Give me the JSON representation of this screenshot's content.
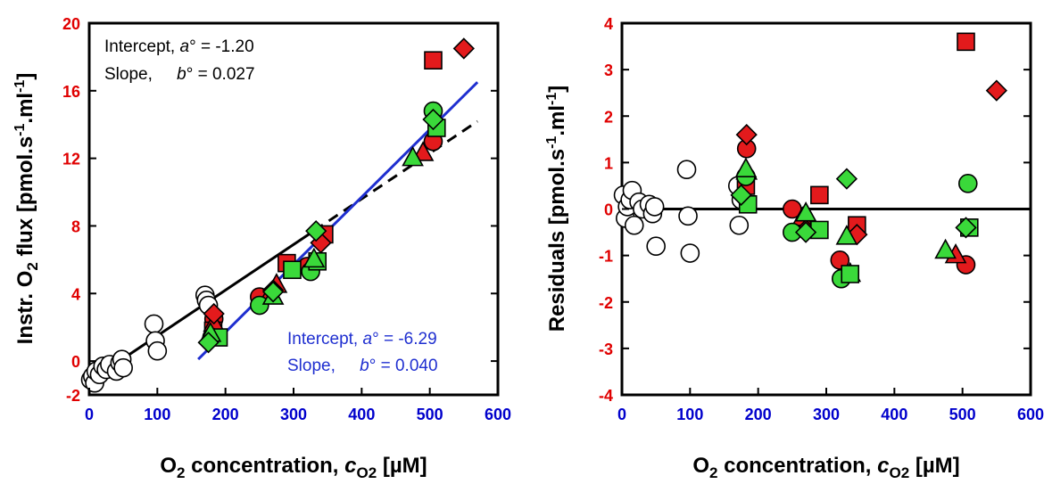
{
  "colors": {
    "tick": "#0000cc",
    "ylabel": "#e00000",
    "xlabel": "#0000cc",
    "red": "#e31a1c",
    "green": "#3ad93a",
    "white": "#ffffff",
    "fit_black": "#000000",
    "fit_blue": "#1f2fd0"
  },
  "chart_data": [
    {
      "type": "scatter",
      "xlabel_parts": {
        "pre": "O",
        "sub1": "2",
        "mid": " concentration, ",
        "var": "c",
        "sub2": "O2",
        "post": " [µM]"
      },
      "ylabel_parts": {
        "pre": "Instr. O",
        "sub1": "2",
        "mid": " flux [pmol.s",
        "sup1": "-1",
        "mid2": ".ml",
        "sup2": "-1",
        "post": "]"
      },
      "xlim": [
        0,
        600
      ],
      "ylim": [
        -2,
        20
      ],
      "xticks": [
        0,
        100,
        200,
        300,
        400,
        500,
        600
      ],
      "yticks": [
        -2,
        0,
        4,
        8,
        12,
        16,
        20
      ],
      "annotation_black": {
        "line1_pre": "Intercept, ",
        "line1_var": "a",
        "line1_post": "° = -1.20",
        "line2_pre": "Slope, ",
        "line2_var": "b",
        "line2_post": "° = 0.027"
      },
      "annotation_blue": {
        "line1_pre": "Intercept, ",
        "line1_var": "a",
        "line1_post": "° = -6.29",
        "line2_pre": "Slope, ",
        "line2_var": "b",
        "line2_post": "° = 0.040"
      },
      "fit_black": {
        "intercept": -1.2,
        "slope": 0.027,
        "solid_x": [
          0,
          330
        ],
        "dashed_x": [
          330,
          570
        ]
      },
      "fit_blue": {
        "intercept": -6.29,
        "slope": 0.04,
        "x": [
          160,
          570
        ]
      },
      "series": [
        {
          "marker": "circle-open",
          "points": [
            [
              2,
              -1.1
            ],
            [
              5,
              -0.9
            ],
            [
              8,
              -1.3
            ],
            [
              10,
              -0.6
            ],
            [
              15,
              -0.8
            ],
            [
              20,
              -0.3
            ],
            [
              25,
              -0.5
            ],
            [
              30,
              -0.2
            ],
            [
              40,
              -0.6
            ],
            [
              45,
              -0.1
            ],
            [
              48,
              0.1
            ],
            [
              50,
              -0.4
            ],
            [
              95,
              2.2
            ],
            [
              97,
              1.2
            ],
            [
              100,
              0.6
            ],
            [
              170,
              3.9
            ],
            [
              172,
              3.6
            ],
            [
              175,
              3.3
            ]
          ]
        },
        {
          "marker": "circle-red",
          "points": [
            [
              183,
              2.5
            ],
            [
              250,
              3.8
            ],
            [
              320,
              5.6
            ],
            [
              505,
              13.0
            ]
          ]
        },
        {
          "marker": "square-red",
          "points": [
            [
              182,
              1.8
            ],
            [
              290,
              5.8
            ],
            [
              345,
              7.5
            ],
            [
              505,
              17.8
            ]
          ]
        },
        {
          "marker": "triangle-red",
          "points": [
            [
              183,
              2.2
            ],
            [
              265,
              3.9
            ],
            [
              275,
              4.5
            ],
            [
              490,
              12.3
            ]
          ]
        },
        {
          "marker": "diamond-red",
          "points": [
            [
              183,
              2.8
            ],
            [
              270,
              4.2
            ],
            [
              340,
              7.0
            ],
            [
              550,
              18.5
            ]
          ]
        },
        {
          "marker": "circle-green",
          "points": [
            [
              180,
              1.4
            ],
            [
              250,
              3.3
            ],
            [
              325,
              5.3
            ],
            [
              505,
              14.8
            ]
          ]
        },
        {
          "marker": "square-green",
          "points": [
            [
              190,
              1.4
            ],
            [
              298,
              5.4
            ],
            [
              335,
              5.9
            ],
            [
              510,
              13.8
            ]
          ]
        },
        {
          "marker": "triangle-green",
          "points": [
            [
              178,
              1.6
            ],
            [
              270,
              3.8
            ],
            [
              330,
              6.0
            ],
            [
              475,
              12.0
            ]
          ]
        },
        {
          "marker": "diamond-green",
          "points": [
            [
              175,
              1.1
            ],
            [
              270,
              4.1
            ],
            [
              333,
              7.7
            ],
            [
              505,
              14.3
            ]
          ]
        }
      ]
    },
    {
      "type": "scatter",
      "xlabel_parts": {
        "pre": "O",
        "sub1": "2",
        "mid": " concentration, ",
        "var": "c",
        "sub2": "O2",
        "post": " [µM]"
      },
      "ylabel_parts": {
        "pre": "Residuals [pmol.s",
        "sup1": "-1",
        "mid2": ".ml",
        "sup2": "-1",
        "post": "]"
      },
      "xlim": [
        0,
        600
      ],
      "ylim": [
        -4,
        4
      ],
      "xticks": [
        0,
        100,
        200,
        300,
        400,
        500,
        600
      ],
      "yticks": [
        -4,
        -3,
        -2,
        -1,
        0,
        1,
        2,
        3,
        4
      ],
      "zero_line": true,
      "series": [
        {
          "marker": "circle-white",
          "points": [
            [
              2,
              0.3
            ],
            [
              5,
              -0.2
            ],
            [
              8,
              0.05
            ],
            [
              12,
              0.2
            ],
            [
              15,
              0.4
            ],
            [
              18,
              -0.35
            ],
            [
              25,
              0.15
            ],
            [
              30,
              0.0
            ],
            [
              40,
              0.1
            ],
            [
              45,
              -0.1
            ],
            [
              48,
              0.05
            ],
            [
              50,
              -0.8
            ],
            [
              95,
              0.85
            ],
            [
              97,
              -0.15
            ],
            [
              100,
              -0.95
            ],
            [
              170,
              0.5
            ],
            [
              172,
              -0.35
            ],
            [
              175,
              0.2
            ]
          ]
        },
        {
          "marker": "circle-red",
          "points": [
            [
              183,
              1.3
            ],
            [
              250,
              0.0
            ],
            [
              320,
              -1.1
            ],
            [
              505,
              -1.2
            ]
          ]
        },
        {
          "marker": "square-red",
          "points": [
            [
              182,
              0.5
            ],
            [
              290,
              0.3
            ],
            [
              345,
              -0.35
            ],
            [
              505,
              3.6
            ]
          ]
        },
        {
          "marker": "triangle-red",
          "points": [
            [
              183,
              0.8
            ],
            [
              265,
              -0.2
            ],
            [
              335,
              -1.4
            ],
            [
              490,
              -1.0
            ]
          ]
        },
        {
          "marker": "diamond-red",
          "points": [
            [
              183,
              1.6
            ],
            [
              270,
              -0.45
            ],
            [
              345,
              -0.55
            ],
            [
              550,
              2.55
            ]
          ]
        },
        {
          "marker": "circle-green",
          "points": [
            [
              182,
              0.7
            ],
            [
              250,
              -0.5
            ],
            [
              322,
              -1.5
            ],
            [
              508,
              0.55
            ]
          ]
        },
        {
          "marker": "square-green",
          "points": [
            [
              185,
              0.1
            ],
            [
              290,
              -0.45
            ],
            [
              335,
              -1.4
            ],
            [
              510,
              -0.4
            ]
          ]
        },
        {
          "marker": "triangle-green",
          "points": [
            [
              182,
              0.85
            ],
            [
              270,
              -0.1
            ],
            [
              330,
              -0.6
            ],
            [
              475,
              -0.9
            ]
          ]
        },
        {
          "marker": "diamond-green",
          "points": [
            [
              175,
              0.3
            ],
            [
              270,
              -0.5
            ],
            [
              330,
              0.65
            ],
            [
              505,
              -0.4
            ]
          ]
        }
      ]
    }
  ]
}
